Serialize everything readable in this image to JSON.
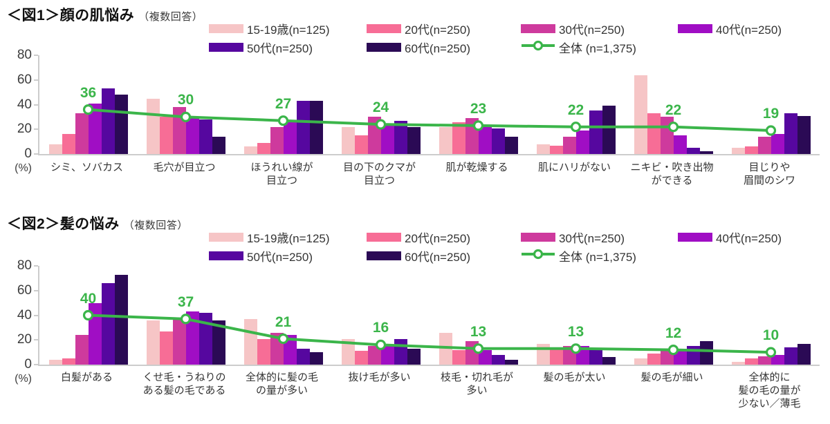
{
  "colors": {
    "green": "#3BB54A",
    "axis": "#CCCCCC",
    "text": "#333333"
  },
  "chart_data": [
    {
      "type": "bar+line",
      "title_prefix": "＜図1＞",
      "title_main": "顔の肌悩み",
      "title_note": "（複数回答）",
      "ylabel": "(%)",
      "ylim": [
        0,
        80
      ],
      "yticks": [
        0,
        20,
        40,
        60,
        80
      ],
      "grid": false,
      "legend_position": "top-right",
      "categories": [
        "シミ、ソバカス",
        "毛穴が目立つ",
        "ほうれい線が\n目立つ",
        "目の下のクマが\n目立つ",
        "肌が乾燥する",
        "肌にハリがない",
        "ニキビ・吹き出物\nができる",
        "目じりや\n眉間のシワ"
      ],
      "series": [
        {
          "name": "15-19歳(n=125)",
          "color": "#F6C5C6",
          "values": [
            8,
            45,
            6,
            22,
            22,
            8,
            64,
            5
          ]
        },
        {
          "name": "20代(n=250)",
          "color": "#F76D96",
          "values": [
            16,
            30,
            9,
            15,
            26,
            7,
            33,
            6
          ]
        },
        {
          "name": "30代(n=250)",
          "color": "#CE3A9D",
          "values": [
            33,
            38,
            22,
            30,
            29,
            14,
            30,
            14
          ]
        },
        {
          "name": "40代(n=250)",
          "color": "#A00EC4",
          "values": [
            41,
            29,
            27,
            23,
            23,
            19,
            15,
            16
          ]
        },
        {
          "name": "50代(n=250)",
          "color": "#56079F",
          "values": [
            53,
            28,
            43,
            27,
            21,
            35,
            5,
            33
          ]
        },
        {
          "name": "60代(n=250)",
          "color": "#2B0A55",
          "values": [
            48,
            14,
            43,
            22,
            14,
            39,
            2,
            31
          ]
        }
      ],
      "line": {
        "name": "全体 (n=1,375)",
        "values": [
          36,
          30,
          27,
          24,
          23,
          22,
          22,
          19
        ]
      }
    },
    {
      "type": "bar+line",
      "title_prefix": "＜図2＞",
      "title_main": "髪の悩み",
      "title_note": "（複数回答）",
      "ylabel": "(%)",
      "ylim": [
        0,
        80
      ],
      "yticks": [
        0,
        20,
        40,
        60,
        80
      ],
      "grid": false,
      "legend_position": "top-right",
      "categories": [
        "白髪がある",
        "くせ毛・うねりの\nある髪の毛である",
        "全体的に髪の毛\nの量が多い",
        "抜け毛が多い",
        "枝毛・切れ毛が\n多い",
        "髪の毛が太い",
        "髪の毛が細い",
        "全体的に\n髪の毛の量が\n少ない／薄毛"
      ],
      "series": [
        {
          "name": "15-19歳(n=125)",
          "color": "#F6C5C6",
          "values": [
            4,
            36,
            37,
            21,
            26,
            17,
            5,
            2
          ]
        },
        {
          "name": "20代(n=250)",
          "color": "#F76D96",
          "values": [
            5,
            27,
            21,
            11,
            12,
            13,
            9,
            5
          ]
        },
        {
          "name": "30代(n=250)",
          "color": "#CE3A9D",
          "values": [
            24,
            37,
            26,
            15,
            19,
            15,
            11,
            7
          ]
        },
        {
          "name": "40代(n=250)",
          "color": "#A00EC4",
          "values": [
            50,
            43,
            24,
            16,
            12,
            15,
            12,
            8
          ]
        },
        {
          "name": "50代(n=250)",
          "color": "#56079F",
          "values": [
            66,
            42,
            13,
            21,
            8,
            12,
            15,
            14
          ]
        },
        {
          "name": "60代(n=250)",
          "color": "#2B0A55",
          "values": [
            73,
            36,
            10,
            13,
            4,
            6,
            19,
            17
          ]
        }
      ],
      "line": {
        "name": "全体 (n=1,375)",
        "values": [
          40,
          37,
          21,
          16,
          13,
          13,
          12,
          10
        ]
      }
    }
  ]
}
